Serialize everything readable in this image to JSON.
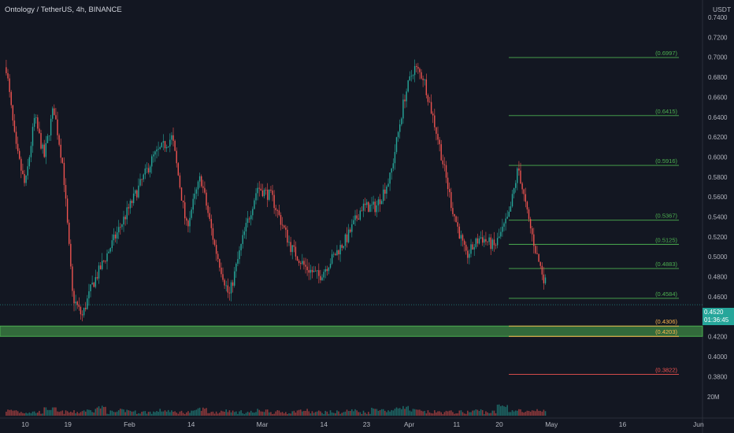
{
  "title": "Ontology / TetherUS, 4h, BINANCE",
  "unit": "USDT",
  "volume_label": "20M",
  "last_price": "0.4520",
  "countdown": "01:36:45",
  "colors": {
    "background": "#131722",
    "up": "#26a69a",
    "down": "#ef5350",
    "zone": "#4caf50",
    "fib": "#4caf50",
    "fib_low": "#ef5350",
    "grid": "#1e222d",
    "text": "#b2b5be"
  },
  "chart_data": {
    "type": "line",
    "title": "Ontology / TetherUS, 4h, BINANCE",
    "xlabel": "",
    "ylabel": "USDT",
    "ylim": [
      0.37,
      0.74
    ],
    "y_ticks": [
      "0.7400",
      "0.7200",
      "0.7000",
      "0.6800",
      "0.6600",
      "0.6400",
      "0.6200",
      "0.6000",
      "0.5800",
      "0.5600",
      "0.5400",
      "0.5200",
      "0.5000",
      "0.4800",
      "0.4600",
      "0.4400",
      "0.4200",
      "0.4000",
      "0.3800"
    ],
    "x_ticks": [
      "10",
      "19",
      "Feb",
      "14",
      "Mar",
      "14",
      "23",
      "Apr",
      "11",
      "20",
      "May",
      "16",
      "Jun"
    ],
    "price_path": {
      "x": [
        "Jan 06",
        "Jan 08",
        "Jan 10",
        "Jan 12",
        "Jan 14",
        "Jan 16",
        "Jan 18",
        "Jan 20",
        "Jan 22",
        "Jan 24",
        "Jan 27",
        "Jan 30",
        "Feb 02",
        "Feb 06",
        "Feb 10",
        "Feb 13",
        "Feb 16",
        "Feb 19",
        "Feb 22",
        "Feb 25",
        "Feb 28",
        "Mar 03",
        "Mar 07",
        "Mar 10",
        "Mar 13",
        "Mar 16",
        "Mar 19",
        "Mar 22",
        "Mar 25",
        "Mar 28",
        "Mar 31",
        "Apr 02",
        "Apr 04",
        "Apr 07",
        "Apr 10",
        "Apr 13",
        "Apr 16",
        "Apr 19",
        "Apr 22",
        "Apr 24",
        "Apr 26",
        "Apr 28",
        "Apr 30"
      ],
      "y": [
        0.69,
        0.61,
        0.57,
        0.64,
        0.6,
        0.65,
        0.59,
        0.46,
        0.44,
        0.47,
        0.5,
        0.53,
        0.56,
        0.6,
        0.62,
        0.53,
        0.58,
        0.51,
        0.46,
        0.52,
        0.57,
        0.56,
        0.51,
        0.49,
        0.48,
        0.5,
        0.52,
        0.55,
        0.55,
        0.58,
        0.66,
        0.69,
        0.68,
        0.62,
        0.55,
        0.5,
        0.52,
        0.51,
        0.54,
        0.59,
        0.54,
        0.5,
        0.47
      ]
    },
    "volume": [
      2,
      1,
      1,
      3,
      1,
      1,
      2,
      4,
      1,
      2,
      1,
      1,
      2,
      1,
      1,
      3,
      1,
      2,
      1,
      1,
      2,
      1,
      1,
      2,
      1,
      1,
      1,
      2,
      1,
      3,
      2,
      4,
      2,
      1,
      1,
      1,
      1,
      2,
      1,
      5,
      2,
      1,
      2
    ],
    "support_zone": [
      0.4203,
      0.4306
    ],
    "current_price": 0.452,
    "fib_levels": [
      {
        "value": 0.6997,
        "label": "(0.6997)"
      },
      {
        "value": 0.6415,
        "label": "(0.6415)"
      },
      {
        "value": 0.5916,
        "label": "(0.5916)"
      },
      {
        "value": 0.5367,
        "label": "(0.5367)"
      },
      {
        "value": 0.5125,
        "label": "(0.5125)"
      },
      {
        "value": 0.4883,
        "label": "(0.4883)"
      },
      {
        "value": 0.4584,
        "label": "(0.4584)"
      },
      {
        "value": 0.4306,
        "label": "(0.4306)"
      },
      {
        "value": 0.4203,
        "label": "(0.4203)"
      },
      {
        "value": 0.3822,
        "label": "(0.3822)"
      }
    ]
  }
}
